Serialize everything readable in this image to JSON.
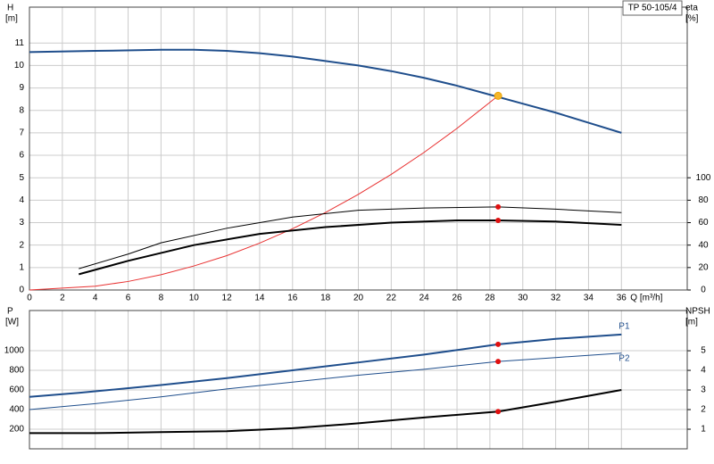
{
  "chart_data": [
    {
      "type": "line",
      "title": "TP 50-105/4",
      "y_label": "H",
      "y_unit": "[m]",
      "y2_label": "eta",
      "y2_unit": "[%]",
      "x_label": "Q [m³/h]",
      "xlim": [
        0,
        40
      ],
      "xticks": [
        0,
        2,
        4,
        6,
        8,
        10,
        12,
        14,
        16,
        18,
        20,
        22,
        24,
        26,
        28,
        30,
        32,
        34,
        36
      ],
      "show_xtick_labels": true,
      "ylim": [
        0,
        12.6
      ],
      "yticks": [
        0,
        1,
        2,
        3,
        4,
        5,
        6,
        7,
        8,
        9,
        10,
        11
      ],
      "y2lim": [
        0,
        252
      ],
      "y2ticks": [
        0,
        20,
        40,
        60,
        80,
        100
      ],
      "grid": true,
      "series": [
        {
          "color": "#1f4e8c",
          "width": 2,
          "axis": "y",
          "x": [
            0,
            4,
            8,
            10,
            12,
            14,
            16,
            18,
            20,
            22,
            24,
            26,
            28,
            30,
            32,
            34,
            36
          ],
          "values": [
            10.6,
            10.65,
            10.7,
            10.7,
            10.65,
            10.55,
            10.4,
            10.2,
            10.0,
            9.75,
            9.45,
            9.1,
            8.7,
            8.3,
            7.9,
            7.45,
            7.0
          ]
        },
        {
          "color": "#e83030",
          "width": 1,
          "axis": "y",
          "x": [
            0,
            4,
            6,
            8,
            10,
            12,
            14,
            16,
            18,
            20,
            22,
            24,
            26,
            28.5
          ],
          "values": [
            0,
            0.17,
            0.38,
            0.68,
            1.07,
            1.53,
            2.09,
            2.73,
            3.45,
            4.26,
            5.15,
            6.13,
            7.2,
            8.65
          ]
        },
        {
          "color": "#000000",
          "width": 1,
          "axis": "y2",
          "x": [
            3,
            6,
            8,
            12,
            16,
            20,
            24,
            28.5,
            32,
            36
          ],
          "values": [
            19,
            32,
            42,
            55,
            65,
            71,
            73,
            74,
            72,
            69
          ]
        },
        {
          "color": "#000000",
          "width": 2,
          "axis": "y2",
          "x": [
            3,
            6,
            10,
            14,
            18,
            22,
            26,
            28.5,
            32,
            36
          ],
          "values": [
            14,
            26,
            40,
            50,
            56,
            60,
            62,
            62,
            61,
            58
          ]
        }
      ],
      "points": [
        {
          "x": 28.5,
          "y": 8.65,
          "axis": "y",
          "color": "#f6b72a"
        },
        {
          "x": 28.5,
          "y": 74,
          "axis": "y2",
          "color": "#e01010"
        },
        {
          "x": 28.5,
          "y": 62,
          "axis": "y2",
          "color": "#e01010"
        }
      ]
    },
    {
      "type": "line",
      "y_label": "P",
      "y_unit": "[W]",
      "y2_label": "NPSH",
      "y2_unit": "[m]",
      "xlim": [
        0,
        40
      ],
      "xticks": [
        0,
        2,
        4,
        6,
        8,
        10,
        12,
        14,
        16,
        18,
        20,
        22,
        24,
        26,
        28,
        30,
        32,
        34,
        36
      ],
      "show_xtick_labels": false,
      "ylim": [
        0,
        1409
      ],
      "yticks": [
        200,
        400,
        600,
        800,
        1000
      ],
      "y2lim": [
        0,
        7.05
      ],
      "y2ticks": [
        1,
        2,
        3,
        4,
        5
      ],
      "grid": true,
      "series": [
        {
          "name": "P1",
          "color": "#1f4e8c",
          "width": 2,
          "axis": "y",
          "x": [
            0,
            3,
            8,
            12,
            16,
            20,
            24,
            28.5,
            32,
            36
          ],
          "values": [
            530,
            570,
            650,
            720,
            800,
            880,
            960,
            1065,
            1120,
            1165
          ]
        },
        {
          "name": "P2",
          "color": "#1f4e8c",
          "width": 1,
          "axis": "y",
          "x": [
            0,
            4,
            8,
            12,
            16,
            20,
            24,
            28.5,
            32,
            36
          ],
          "values": [
            400,
            460,
            530,
            610,
            680,
            750,
            810,
            890,
            930,
            975
          ]
        },
        {
          "color": "#000000",
          "width": 2,
          "axis": "y2",
          "x": [
            0,
            4,
            8,
            12,
            16,
            20,
            24,
            28.5,
            32,
            34,
            36
          ],
          "values": [
            0.8,
            0.8,
            0.85,
            0.9,
            1.05,
            1.3,
            1.6,
            1.9,
            2.4,
            2.7,
            3.0
          ]
        }
      ],
      "points": [
        {
          "x": 28.5,
          "y": 1065,
          "axis": "y",
          "color": "#e01010"
        },
        {
          "x": 28.5,
          "y": 890,
          "axis": "y",
          "color": "#e01010"
        },
        {
          "x": 28.5,
          "y": 1.9,
          "axis": "y2",
          "color": "#e01010"
        }
      ]
    }
  ]
}
